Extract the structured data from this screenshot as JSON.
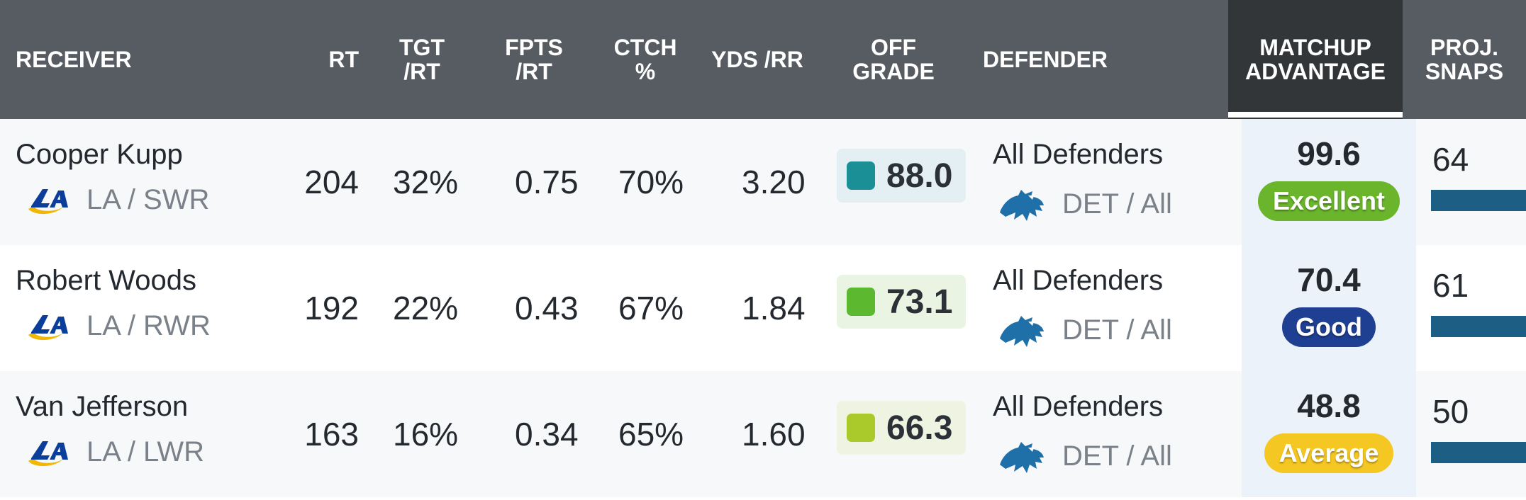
{
  "columns": {
    "receiver": "RECEIVER",
    "rt": "RT",
    "tgt_rt": "TGT\n/RT",
    "fpts_rt": "FPTS\n/RT",
    "ctch": "CTCH\n%",
    "yds_rr": "YDS /RR",
    "off_grade": "OFF\nGRADE",
    "defender": "DEFENDER",
    "matchup": "MATCHUP\nADVANTAGE",
    "proj_snaps": "PROJ.\nSNAPS"
  },
  "colors": {
    "header_bg": "#575c63",
    "active_header_bg": "#323639",
    "snap_bar": "#1d5e85"
  },
  "rows": [
    {
      "name": "Cooper Kupp",
      "team": "LA / SWR",
      "team_logo": "rams-logo-icon",
      "rt": "204",
      "tgt_rt": "32%",
      "fpts_rt": "0.75",
      "ctch": "70%",
      "yds_rr": "3.20",
      "grade": "88.0",
      "grade_color": "#1a8f95",
      "grade_bg": "#e3eff2",
      "defender": "All Defenders",
      "def_team": "DET / All",
      "def_logo": "lions-logo-icon",
      "matchup": "99.6",
      "badge": "Excellent",
      "badge_color": "#6ab52c",
      "snaps": "64"
    },
    {
      "name": "Robert Woods",
      "team": "LA / RWR",
      "team_logo": "rams-logo-icon",
      "rt": "192",
      "tgt_rt": "22%",
      "fpts_rt": "0.43",
      "ctch": "67%",
      "yds_rr": "1.84",
      "grade": "73.1",
      "grade_color": "#5cb82e",
      "grade_bg": "#e9f4e3",
      "defender": "All Defenders",
      "def_team": "DET / All",
      "def_logo": "lions-logo-icon",
      "matchup": "70.4",
      "badge": "Good",
      "badge_color": "#1f3f93",
      "snaps": "61"
    },
    {
      "name": "Van Jefferson",
      "team": "LA / LWR",
      "team_logo": "rams-logo-icon",
      "rt": "163",
      "tgt_rt": "16%",
      "fpts_rt": "0.34",
      "ctch": "65%",
      "yds_rr": "1.60",
      "grade": "66.3",
      "grade_color": "#aac92b",
      "grade_bg": "#eff3e1",
      "defender": "All Defenders",
      "def_team": "DET / All",
      "def_logo": "lions-logo-icon",
      "matchup": "48.8",
      "badge": "Average",
      "badge_color": "#f5c722",
      "snaps": "50"
    }
  ]
}
